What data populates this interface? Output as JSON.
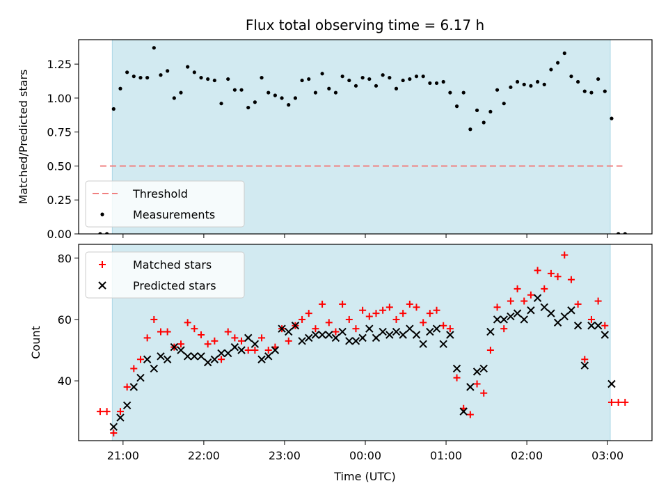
{
  "chart_data": [
    {
      "type": "scatter",
      "title": "Flux total observing time = 6.17 h",
      "xlabel": "",
      "ylabel": "Matched/Predicted stars",
      "xlim": [
        -3.55,
        3.55
      ],
      "ylim": [
        0.0,
        1.43
      ],
      "y_ticks": [
        0.0,
        0.25,
        0.5,
        0.75,
        1.0,
        1.25
      ],
      "y_tick_labels": [
        "0.00",
        "0.25",
        "0.50",
        "0.75",
        "1.00",
        "1.25"
      ],
      "shaded_interval": {
        "start": "20:52",
        "end": "03:02",
        "color": "#add8e6"
      },
      "threshold": {
        "y": 0.5,
        "x_start": "20:43",
        "x_end": "03:11",
        "color": "#f08080"
      },
      "legend": {
        "placement": "lower-left",
        "entries": [
          "Threshold",
          "Measurements"
        ]
      },
      "series": [
        {
          "name": "Measurements",
          "marker": "dot",
          "color": "#000000",
          "x": [
            "20:43",
            "20:48",
            "20:53",
            "20:58",
            "21:03",
            "21:08",
            "21:13",
            "21:18",
            "21:23",
            "21:28",
            "21:33",
            "21:38",
            "21:43",
            "21:48",
            "21:53",
            "21:58",
            "22:03",
            "22:08",
            "22:13",
            "22:18",
            "22:23",
            "22:28",
            "22:33",
            "22:38",
            "22:43",
            "22:48",
            "22:53",
            "22:58",
            "23:03",
            "23:08",
            "23:13",
            "23:18",
            "23:23",
            "23:28",
            "23:33",
            "23:38",
            "23:43",
            "23:48",
            "23:53",
            "23:58",
            "00:03",
            "00:08",
            "00:13",
            "00:18",
            "00:23",
            "00:28",
            "00:33",
            "00:38",
            "00:43",
            "00:48",
            "00:53",
            "00:58",
            "01:03",
            "01:08",
            "01:13",
            "01:18",
            "01:23",
            "01:28",
            "01:33",
            "01:38",
            "01:43",
            "01:48",
            "01:53",
            "01:58",
            "02:03",
            "02:08",
            "02:13",
            "02:18",
            "02:23",
            "02:28",
            "02:33",
            "02:38",
            "02:43",
            "02:48",
            "02:53",
            "02:58",
            "03:03",
            "03:08",
            "03:13"
          ],
          "y": [
            0.0,
            0.0,
            0.92,
            1.07,
            1.19,
            1.16,
            1.15,
            1.15,
            1.37,
            1.17,
            1.2,
            1.0,
            1.04,
            1.23,
            1.19,
            1.15,
            1.14,
            1.13,
            0.96,
            1.14,
            1.06,
            1.06,
            0.93,
            0.97,
            1.15,
            1.04,
            1.02,
            1.0,
            0.95,
            1.0,
            1.13,
            1.14,
            1.04,
            1.18,
            1.07,
            1.04,
            1.16,
            1.13,
            1.09,
            1.15,
            1.14,
            1.09,
            1.17,
            1.15,
            1.07,
            1.13,
            1.14,
            1.16,
            1.16,
            1.11,
            1.11,
            1.12,
            1.04,
            0.94,
            1.04,
            0.77,
            0.91,
            0.82,
            0.9,
            1.06,
            0.96,
            1.08,
            1.12,
            1.1,
            1.09,
            1.12,
            1.1,
            1.21,
            1.26,
            1.33,
            1.16,
            1.12,
            1.05,
            1.04,
            1.14,
            1.05,
            0.85,
            0.0,
            0.0
          ]
        }
      ]
    },
    {
      "type": "scatter",
      "title": "",
      "xlabel": "Time (UTC)",
      "ylabel": "Count",
      "xlim": [
        -3.55,
        3.55
      ],
      "ylim": [
        20.5,
        84.5
      ],
      "y_ticks": [
        40,
        60,
        80
      ],
      "y_tick_labels": [
        "40",
        "60",
        "80"
      ],
      "x_ticks": [
        "21:00",
        "22:00",
        "23:00",
        "00:00",
        "01:00",
        "02:00",
        "03:00"
      ],
      "shaded_interval": {
        "start": "20:52",
        "end": "03:02",
        "color": "#add8e6"
      },
      "legend": {
        "placement": "upper-left",
        "entries": [
          "Matched stars",
          "Predicted stars"
        ]
      },
      "series": [
        {
          "name": "Matched stars",
          "marker": "plus",
          "color": "#ff0000",
          "x": [
            "20:43",
            "20:48",
            "20:53",
            "20:58",
            "21:03",
            "21:08",
            "21:13",
            "21:18",
            "21:23",
            "21:28",
            "21:33",
            "21:38",
            "21:43",
            "21:48",
            "21:53",
            "21:58",
            "22:03",
            "22:08",
            "22:13",
            "22:18",
            "22:23",
            "22:28",
            "22:33",
            "22:38",
            "22:43",
            "22:48",
            "22:53",
            "22:58",
            "23:03",
            "23:08",
            "23:13",
            "23:18",
            "23:23",
            "23:28",
            "23:33",
            "23:38",
            "23:43",
            "23:48",
            "23:53",
            "23:58",
            "00:03",
            "00:08",
            "00:13",
            "00:18",
            "00:23",
            "00:28",
            "00:33",
            "00:38",
            "00:43",
            "00:48",
            "00:53",
            "00:58",
            "01:03",
            "01:08",
            "01:13",
            "01:18",
            "01:23",
            "01:28",
            "01:33",
            "01:38",
            "01:43",
            "01:48",
            "01:53",
            "01:58",
            "02:03",
            "02:08",
            "02:13",
            "02:18",
            "02:23",
            "02:28",
            "02:33",
            "02:38",
            "02:43",
            "02:48",
            "02:53",
            "02:58",
            "03:03",
            "03:08",
            "03:13"
          ],
          "y": [
            30,
            30,
            23,
            30,
            38,
            44,
            47,
            54,
            60,
            56,
            56,
            51,
            52,
            59,
            57,
            55,
            52,
            53,
            47,
            56,
            54,
            53,
            50,
            50,
            54,
            50,
            51,
            57,
            53,
            58,
            60,
            62,
            57,
            65,
            59,
            56,
            65,
            60,
            57,
            63,
            61,
            62,
            63,
            64,
            60,
            62,
            65,
            64,
            59,
            62,
            63,
            58,
            57,
            41,
            31,
            29,
            39,
            36,
            50,
            64,
            57,
            66,
            70,
            66,
            68,
            76,
            70,
            75,
            74,
            81,
            73,
            65,
            47,
            60,
            66,
            58,
            33,
            33,
            33
          ]
        },
        {
          "name": "Predicted stars",
          "marker": "x",
          "color": "#000000",
          "x": [
            "20:53",
            "20:58",
            "21:03",
            "21:08",
            "21:13",
            "21:18",
            "21:23",
            "21:28",
            "21:33",
            "21:38",
            "21:43",
            "21:48",
            "21:53",
            "21:58",
            "22:03",
            "22:08",
            "22:13",
            "22:18",
            "22:23",
            "22:28",
            "22:33",
            "22:38",
            "22:43",
            "22:48",
            "22:53",
            "22:58",
            "23:03",
            "23:08",
            "23:13",
            "23:18",
            "23:23",
            "23:28",
            "23:33",
            "23:38",
            "23:43",
            "23:48",
            "23:53",
            "23:58",
            "00:03",
            "00:08",
            "00:13",
            "00:18",
            "00:23",
            "00:28",
            "00:33",
            "00:38",
            "00:43",
            "00:48",
            "00:53",
            "00:58",
            "01:03",
            "01:08",
            "01:13",
            "01:18",
            "01:23",
            "01:28",
            "01:33",
            "01:38",
            "01:43",
            "01:48",
            "01:53",
            "01:58",
            "02:03",
            "02:08",
            "02:13",
            "02:18",
            "02:23",
            "02:28",
            "02:33",
            "02:38",
            "02:43",
            "02:48",
            "02:53",
            "02:58",
            "03:03"
          ],
          "y": [
            25,
            28,
            32,
            38,
            41,
            47,
            44,
            48,
            47,
            51,
            50,
            48,
            48,
            48,
            46,
            47,
            49,
            49,
            51,
            50,
            54,
            52,
            47,
            48,
            50,
            57,
            56,
            58,
            53,
            54,
            55,
            55,
            55,
            54,
            56,
            53,
            53,
            54,
            57,
            54,
            56,
            55,
            56,
            55,
            57,
            55,
            52,
            56,
            57,
            52,
            55,
            44,
            30,
            38,
            43,
            44,
            56,
            60,
            60,
            61,
            62,
            60,
            63,
            67,
            64,
            62,
            59,
            61,
            63,
            58,
            45,
            58,
            58,
            55,
            39
          ]
        }
      ]
    }
  ]
}
